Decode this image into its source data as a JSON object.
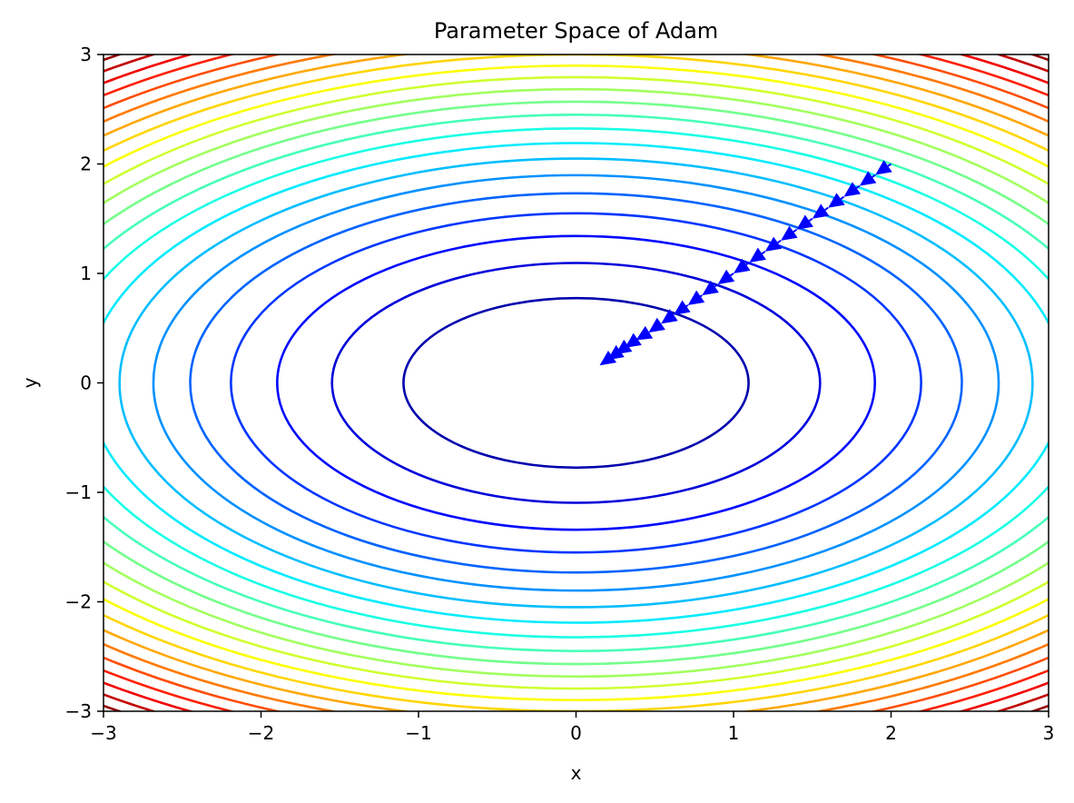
{
  "chart_data": {
    "type": "contour",
    "title": "Parameter Space of Adam",
    "xlabel": "x",
    "ylabel": "y",
    "xlim": [
      -3,
      3
    ],
    "ylim": [
      -3,
      3
    ],
    "xticks": [
      {
        "value": -3,
        "label": "−3"
      },
      {
        "value": -2,
        "label": "−2"
      },
      {
        "value": -1,
        "label": "−1"
      },
      {
        "value": 0,
        "label": "0"
      },
      {
        "value": 1,
        "label": "1"
      },
      {
        "value": 2,
        "label": "2"
      },
      {
        "value": 3,
        "label": "3"
      }
    ],
    "yticks": [
      {
        "value": -3,
        "label": "−3"
      },
      {
        "value": -2,
        "label": "−2"
      },
      {
        "value": -1,
        "label": "−1"
      },
      {
        "value": 0,
        "label": "0"
      },
      {
        "value": 1,
        "label": "1"
      },
      {
        "value": 2,
        "label": "2"
      },
      {
        "value": 3,
        "label": "3"
      }
    ],
    "grid": false,
    "colormap": "jet",
    "function": "x^2 + 2*y^2",
    "contour_levels": [
      1.2,
      2.4,
      3.6,
      4.8,
      6.0,
      7.2,
      8.4,
      9.6,
      10.8,
      12.0,
      13.2,
      14.4,
      15.6,
      16.8,
      18.0,
      19.2,
      20.4,
      21.6,
      22.8,
      24.0,
      25.2,
      26.4,
      27.6
    ],
    "level_range": [
      0,
      27
    ],
    "trajectory": {
      "name": "Adam",
      "color": "#0000ff",
      "x": [
        2.0,
        1.9,
        1.8,
        1.7,
        1.6,
        1.5,
        1.4,
        1.3,
        1.2,
        1.1,
        1.0,
        0.9,
        0.8,
        0.71,
        0.62,
        0.54,
        0.46,
        0.38,
        0.31,
        0.25,
        0.2,
        0.15
      ],
      "y": [
        2.0,
        1.9,
        1.8,
        1.7,
        1.6,
        1.5,
        1.4,
        1.3,
        1.2,
        1.1,
        1.0,
        0.9,
        0.8,
        0.71,
        0.62,
        0.54,
        0.46,
        0.39,
        0.32,
        0.26,
        0.21,
        0.16
      ]
    }
  }
}
